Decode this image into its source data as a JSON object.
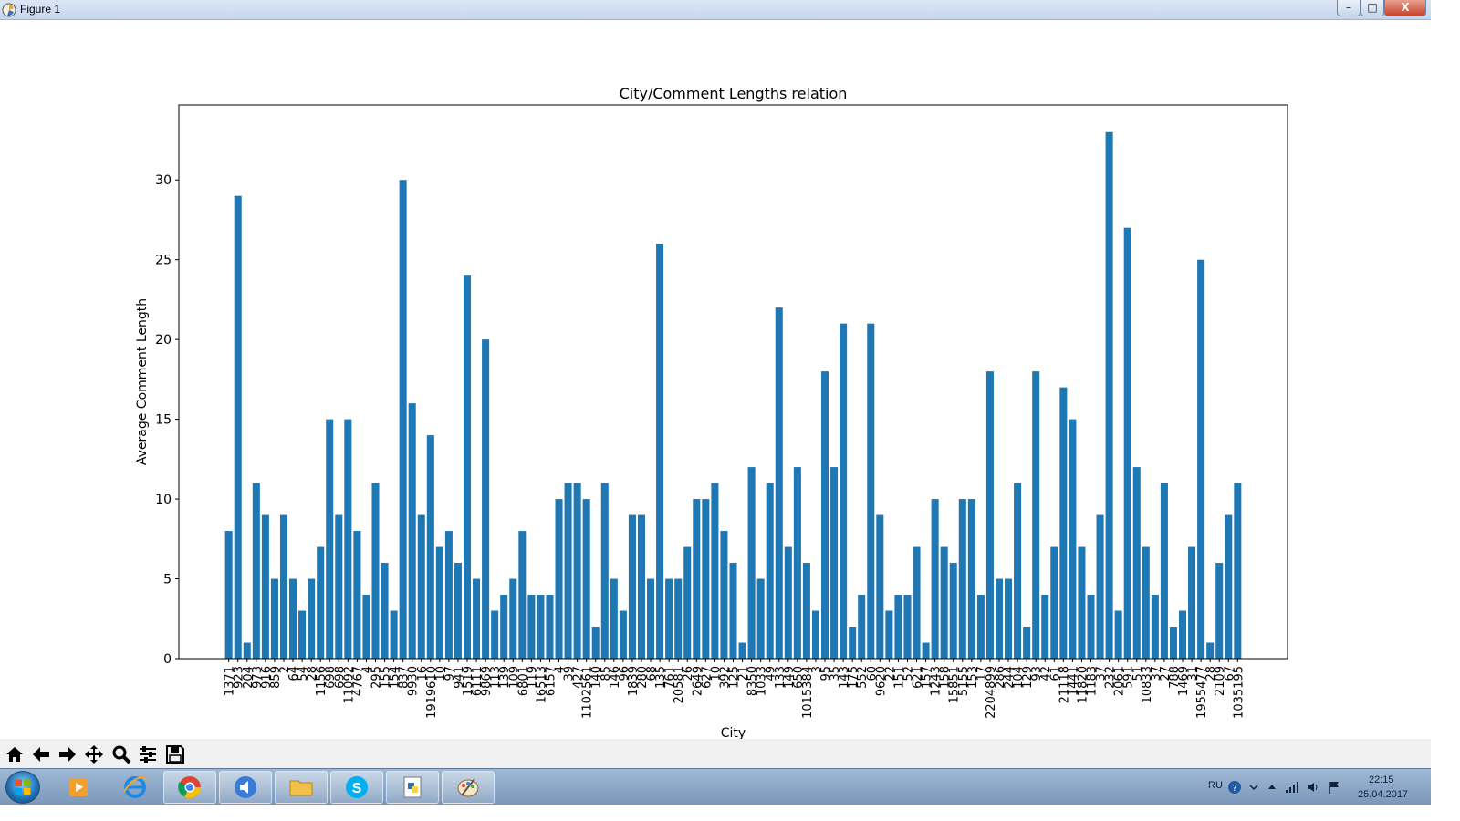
{
  "window": {
    "title": "Figure 1",
    "minimize_glyph": "–",
    "maximize_glyph": "□",
    "close_glyph": "X"
  },
  "toolbar": {
    "buttons": [
      "home-icon",
      "back-icon",
      "forward-icon",
      "pan-icon",
      "zoom-icon",
      "configure-subplots-icon",
      "save-icon"
    ]
  },
  "taskbar": {
    "items": [
      "windows-start-icon",
      "media-player-icon",
      "internet-explorer-icon",
      "chrome-icon",
      "audio-app-icon",
      "file-explorer-icon",
      "skype-icon",
      "python-app-icon",
      "paint-icon"
    ],
    "language": "RU",
    "time": "22:15",
    "date": "25.04.2017"
  },
  "colors": {
    "bar": "#1f77b4",
    "axis": "#000000"
  },
  "chart_data": {
    "type": "bar",
    "title": "City/Comment Lengths relation",
    "xlabel": "City",
    "ylabel": "Average Comment Length",
    "ylim": [
      0,
      34.7
    ],
    "yticks": [
      0,
      5,
      10,
      15,
      20,
      25,
      30
    ],
    "grid": false,
    "categories": [
      "1371",
      "923",
      "204",
      "973",
      "916",
      "859",
      "2",
      "64",
      "54",
      "28",
      "1156",
      "698",
      "698",
      "11092",
      "4767",
      "4",
      "295",
      "155",
      "154",
      "837",
      "9930",
      "16",
      "1919610",
      "10",
      "97",
      "941",
      "1519",
      "6111",
      "9869",
      "113",
      "139",
      "109",
      "6801",
      "119",
      "16513",
      "6157",
      "4",
      "39",
      "427",
      "1102561",
      "140",
      "85",
      "146",
      "96",
      "1839",
      "280",
      "68",
      "135",
      "761",
      "20581",
      "26",
      "2649",
      "627",
      "10",
      "392",
      "125",
      "21",
      "8350",
      "1033",
      "49",
      "133",
      "149",
      "650",
      "1015384",
      "3",
      "95",
      "35",
      "143",
      "175",
      "552",
      "60",
      "9620",
      "22",
      "151",
      "52",
      "621",
      "157",
      "1243",
      "158",
      "15851",
      "5155",
      "153",
      "17",
      "2204899",
      "286",
      "244",
      "104",
      "129",
      "93",
      "42",
      "61",
      "21118",
      "1441",
      "11820",
      "1183",
      "37",
      "232",
      "2061",
      "591",
      "51",
      "10833",
      "37",
      "27",
      "788",
      "1469",
      "31",
      "1955477",
      "28",
      "2109",
      "67",
      "1035195"
    ],
    "values": [
      8,
      29,
      1,
      11,
      9,
      5,
      9,
      5,
      3,
      5,
      7,
      15,
      9,
      15,
      8,
      4,
      11,
      6,
      3,
      30,
      16,
      9,
      14,
      7,
      8,
      6,
      24,
      5,
      20,
      3,
      4,
      5,
      8,
      4,
      4,
      4,
      10,
      11,
      11,
      10,
      2,
      11,
      5,
      3,
      9,
      9,
      5,
      26,
      5,
      5,
      7,
      10,
      10,
      11,
      8,
      6,
      1,
      12,
      5,
      11,
      22,
      7,
      12,
      6,
      3,
      18,
      12,
      21,
      2,
      4,
      21,
      9,
      3,
      4,
      4,
      7,
      1,
      10,
      7,
      6,
      10,
      10,
      4,
      18,
      5,
      5,
      11,
      2,
      18,
      4,
      7,
      17,
      15,
      7,
      4,
      9,
      33,
      3,
      27,
      12,
      7,
      4,
      11,
      2,
      3,
      7,
      25,
      1,
      6,
      9,
      11
    ]
  }
}
